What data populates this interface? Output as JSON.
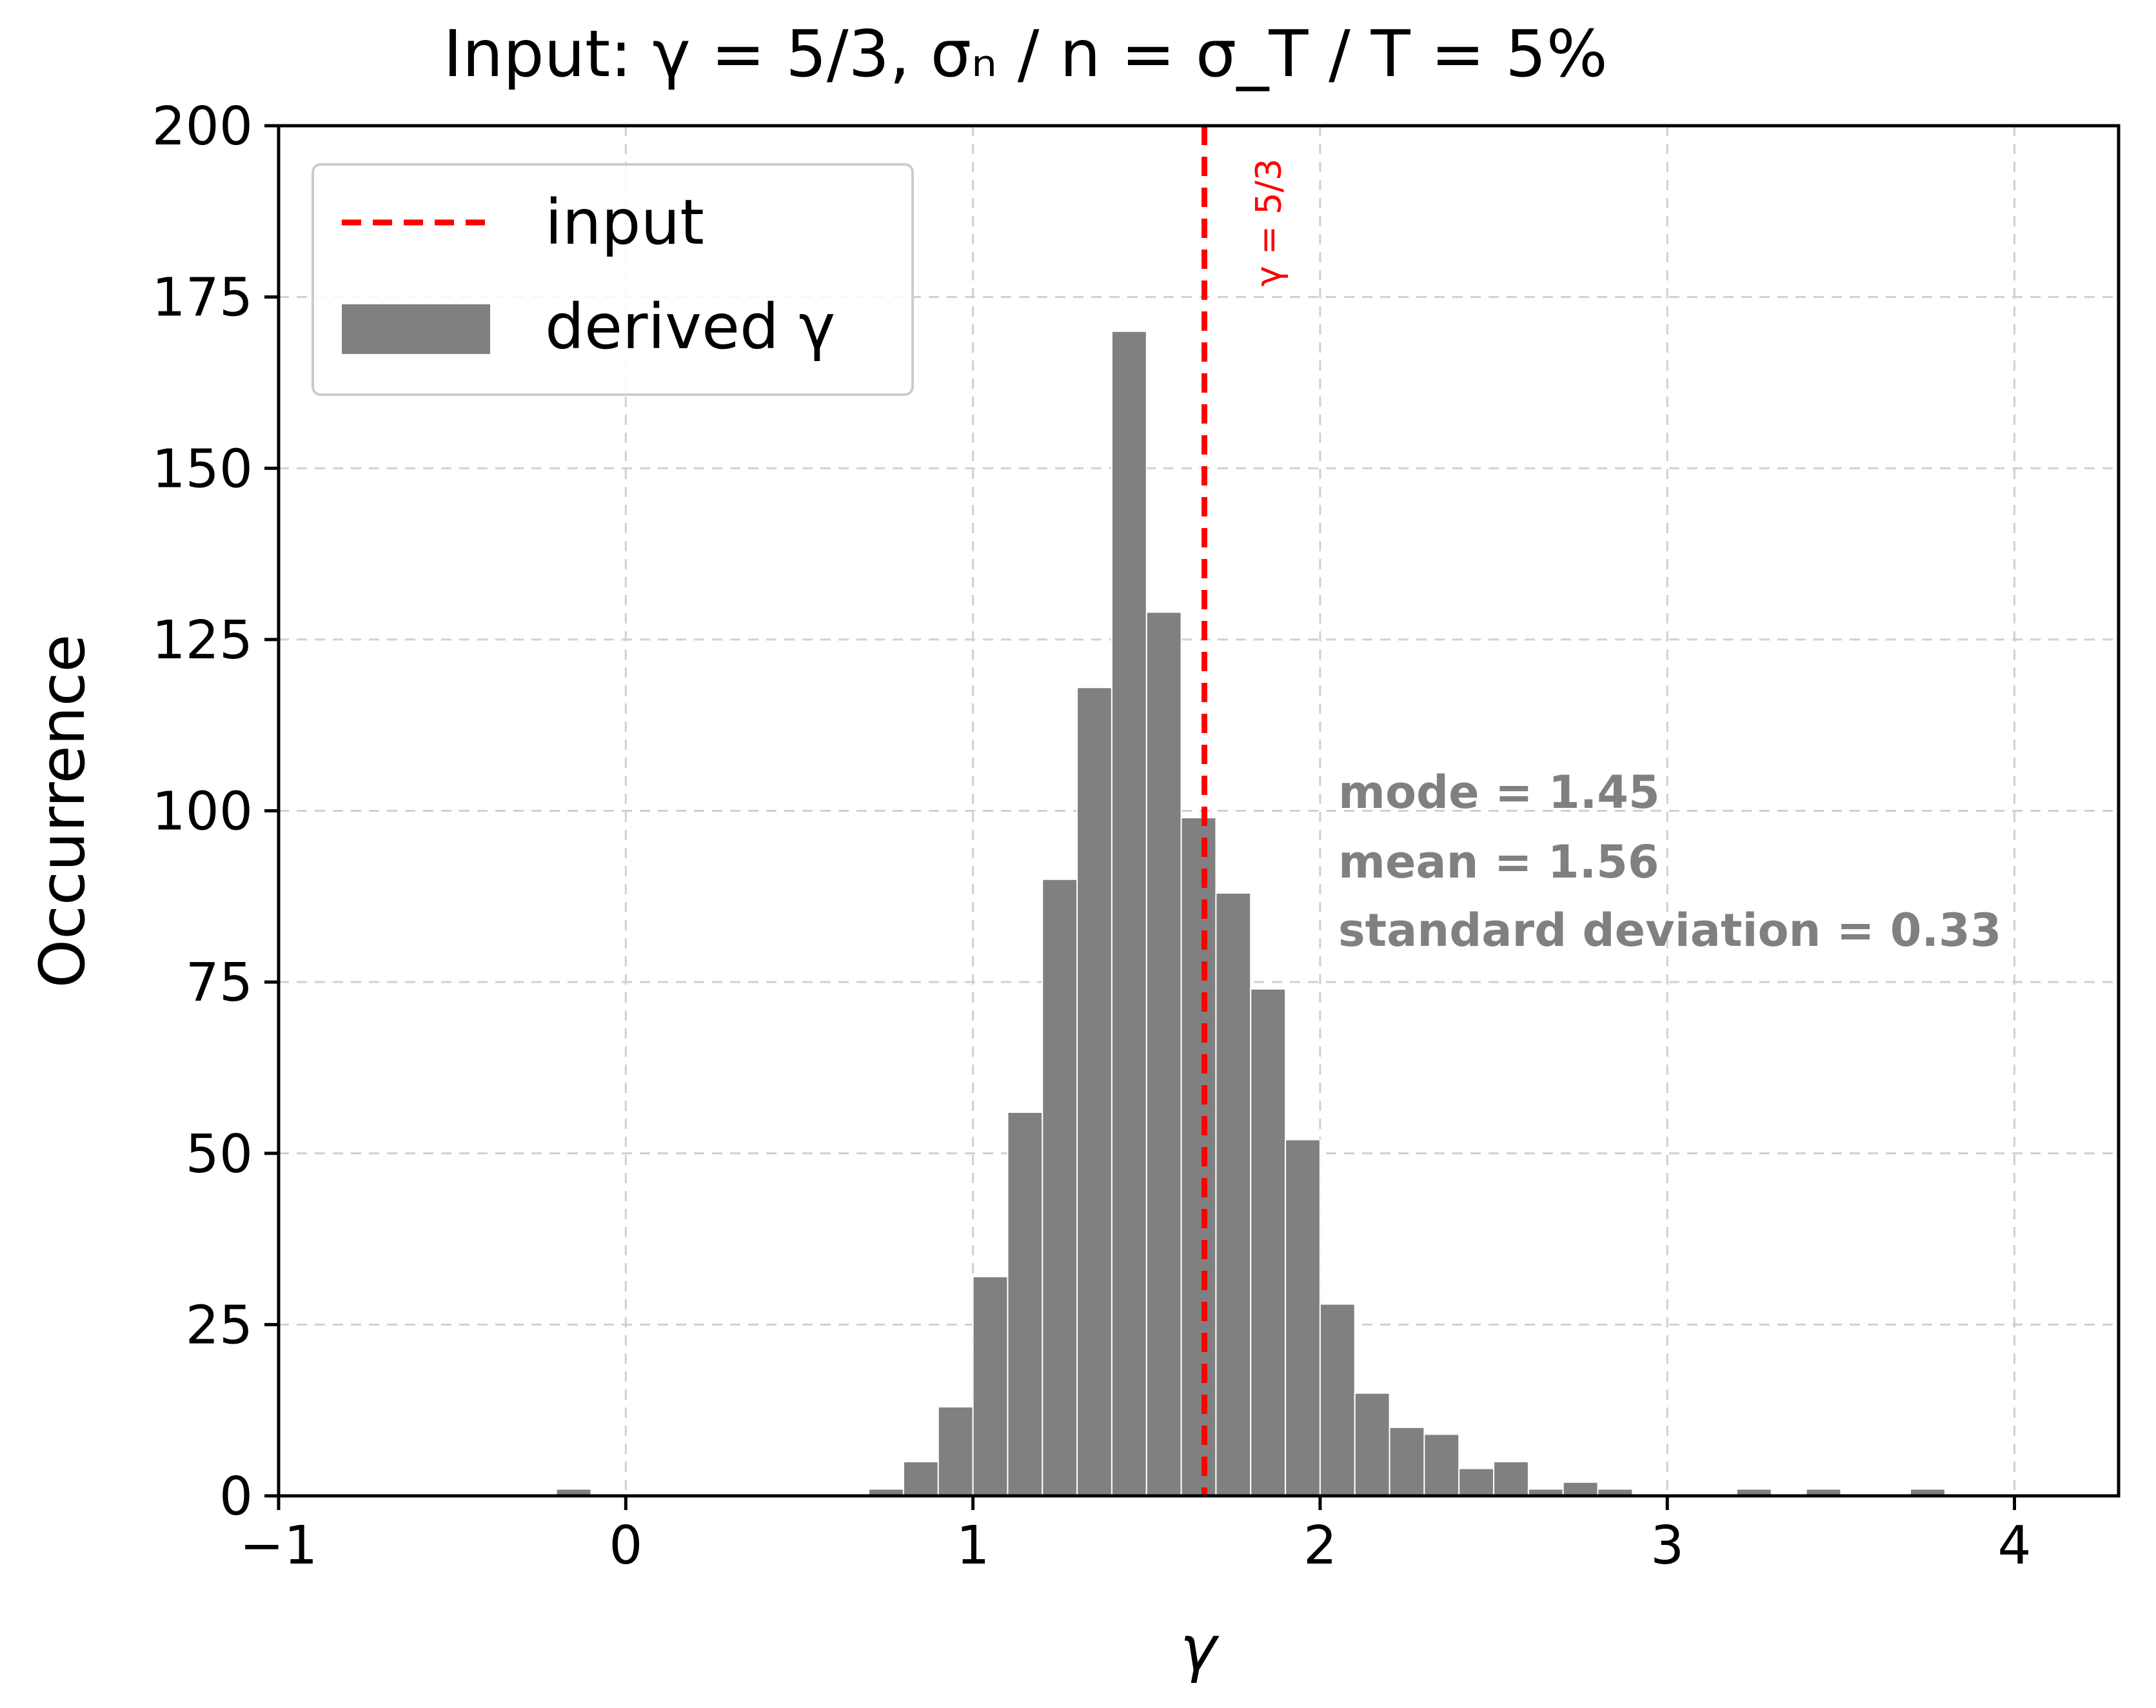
{
  "chart_data": {
    "type": "bar",
    "title": "Input: γ = 5/3,  σₙ / n = σ_T / T = 5%",
    "xlabel": "γ",
    "ylabel": "Occurrence",
    "xlim": [
      -1,
      4.3
    ],
    "ylim": [
      0,
      200
    ],
    "xticks": [
      -1,
      0,
      1,
      2,
      3,
      4
    ],
    "xtick_labels": [
      "−1",
      "0",
      "1",
      "2",
      "3",
      "4"
    ],
    "yticks": [
      0,
      25,
      50,
      75,
      100,
      125,
      150,
      175,
      200
    ],
    "ytick_labels": [
      "0",
      "25",
      "50",
      "75",
      "100",
      "125",
      "150",
      "175",
      "200"
    ],
    "grid": true,
    "bin_width": 0.1,
    "bins": [
      {
        "start": -0.2,
        "value": 1
      },
      {
        "start": 0.7,
        "value": 1
      },
      {
        "start": 0.8,
        "value": 5
      },
      {
        "start": 0.9,
        "value": 13
      },
      {
        "start": 1.0,
        "value": 32
      },
      {
        "start": 1.1,
        "value": 56
      },
      {
        "start": 1.2,
        "value": 90
      },
      {
        "start": 1.3,
        "value": 118
      },
      {
        "start": 1.4,
        "value": 170
      },
      {
        "start": 1.5,
        "value": 129
      },
      {
        "start": 1.6,
        "value": 99
      },
      {
        "start": 1.7,
        "value": 88
      },
      {
        "start": 1.8,
        "value": 74
      },
      {
        "start": 1.9,
        "value": 52
      },
      {
        "start": 2.0,
        "value": 28
      },
      {
        "start": 2.1,
        "value": 15
      },
      {
        "start": 2.2,
        "value": 10
      },
      {
        "start": 2.3,
        "value": 9
      },
      {
        "start": 2.4,
        "value": 4
      },
      {
        "start": 2.5,
        "value": 5
      },
      {
        "start": 2.6,
        "value": 1
      },
      {
        "start": 2.7,
        "value": 2
      },
      {
        "start": 2.8,
        "value": 1
      },
      {
        "start": 3.2,
        "value": 1
      },
      {
        "start": 3.4,
        "value": 1
      },
      {
        "start": 3.7,
        "value": 1
      }
    ],
    "input_value": 1.6667,
    "input_label": "γ = 5/3",
    "legend": {
      "placement": "top-left",
      "entries": [
        {
          "label": "input",
          "style": "dashed-line",
          "color": "#ff0000"
        },
        {
          "label": "derived γ",
          "style": "patch",
          "color": "#808080"
        }
      ]
    },
    "annotations": [
      "mode = 1.45",
      "mean = 1.56",
      "standard deviation = 0.33"
    ],
    "colors": {
      "bars": "#808080",
      "input_line": "#ff0000",
      "stats_text": "#808080"
    }
  }
}
